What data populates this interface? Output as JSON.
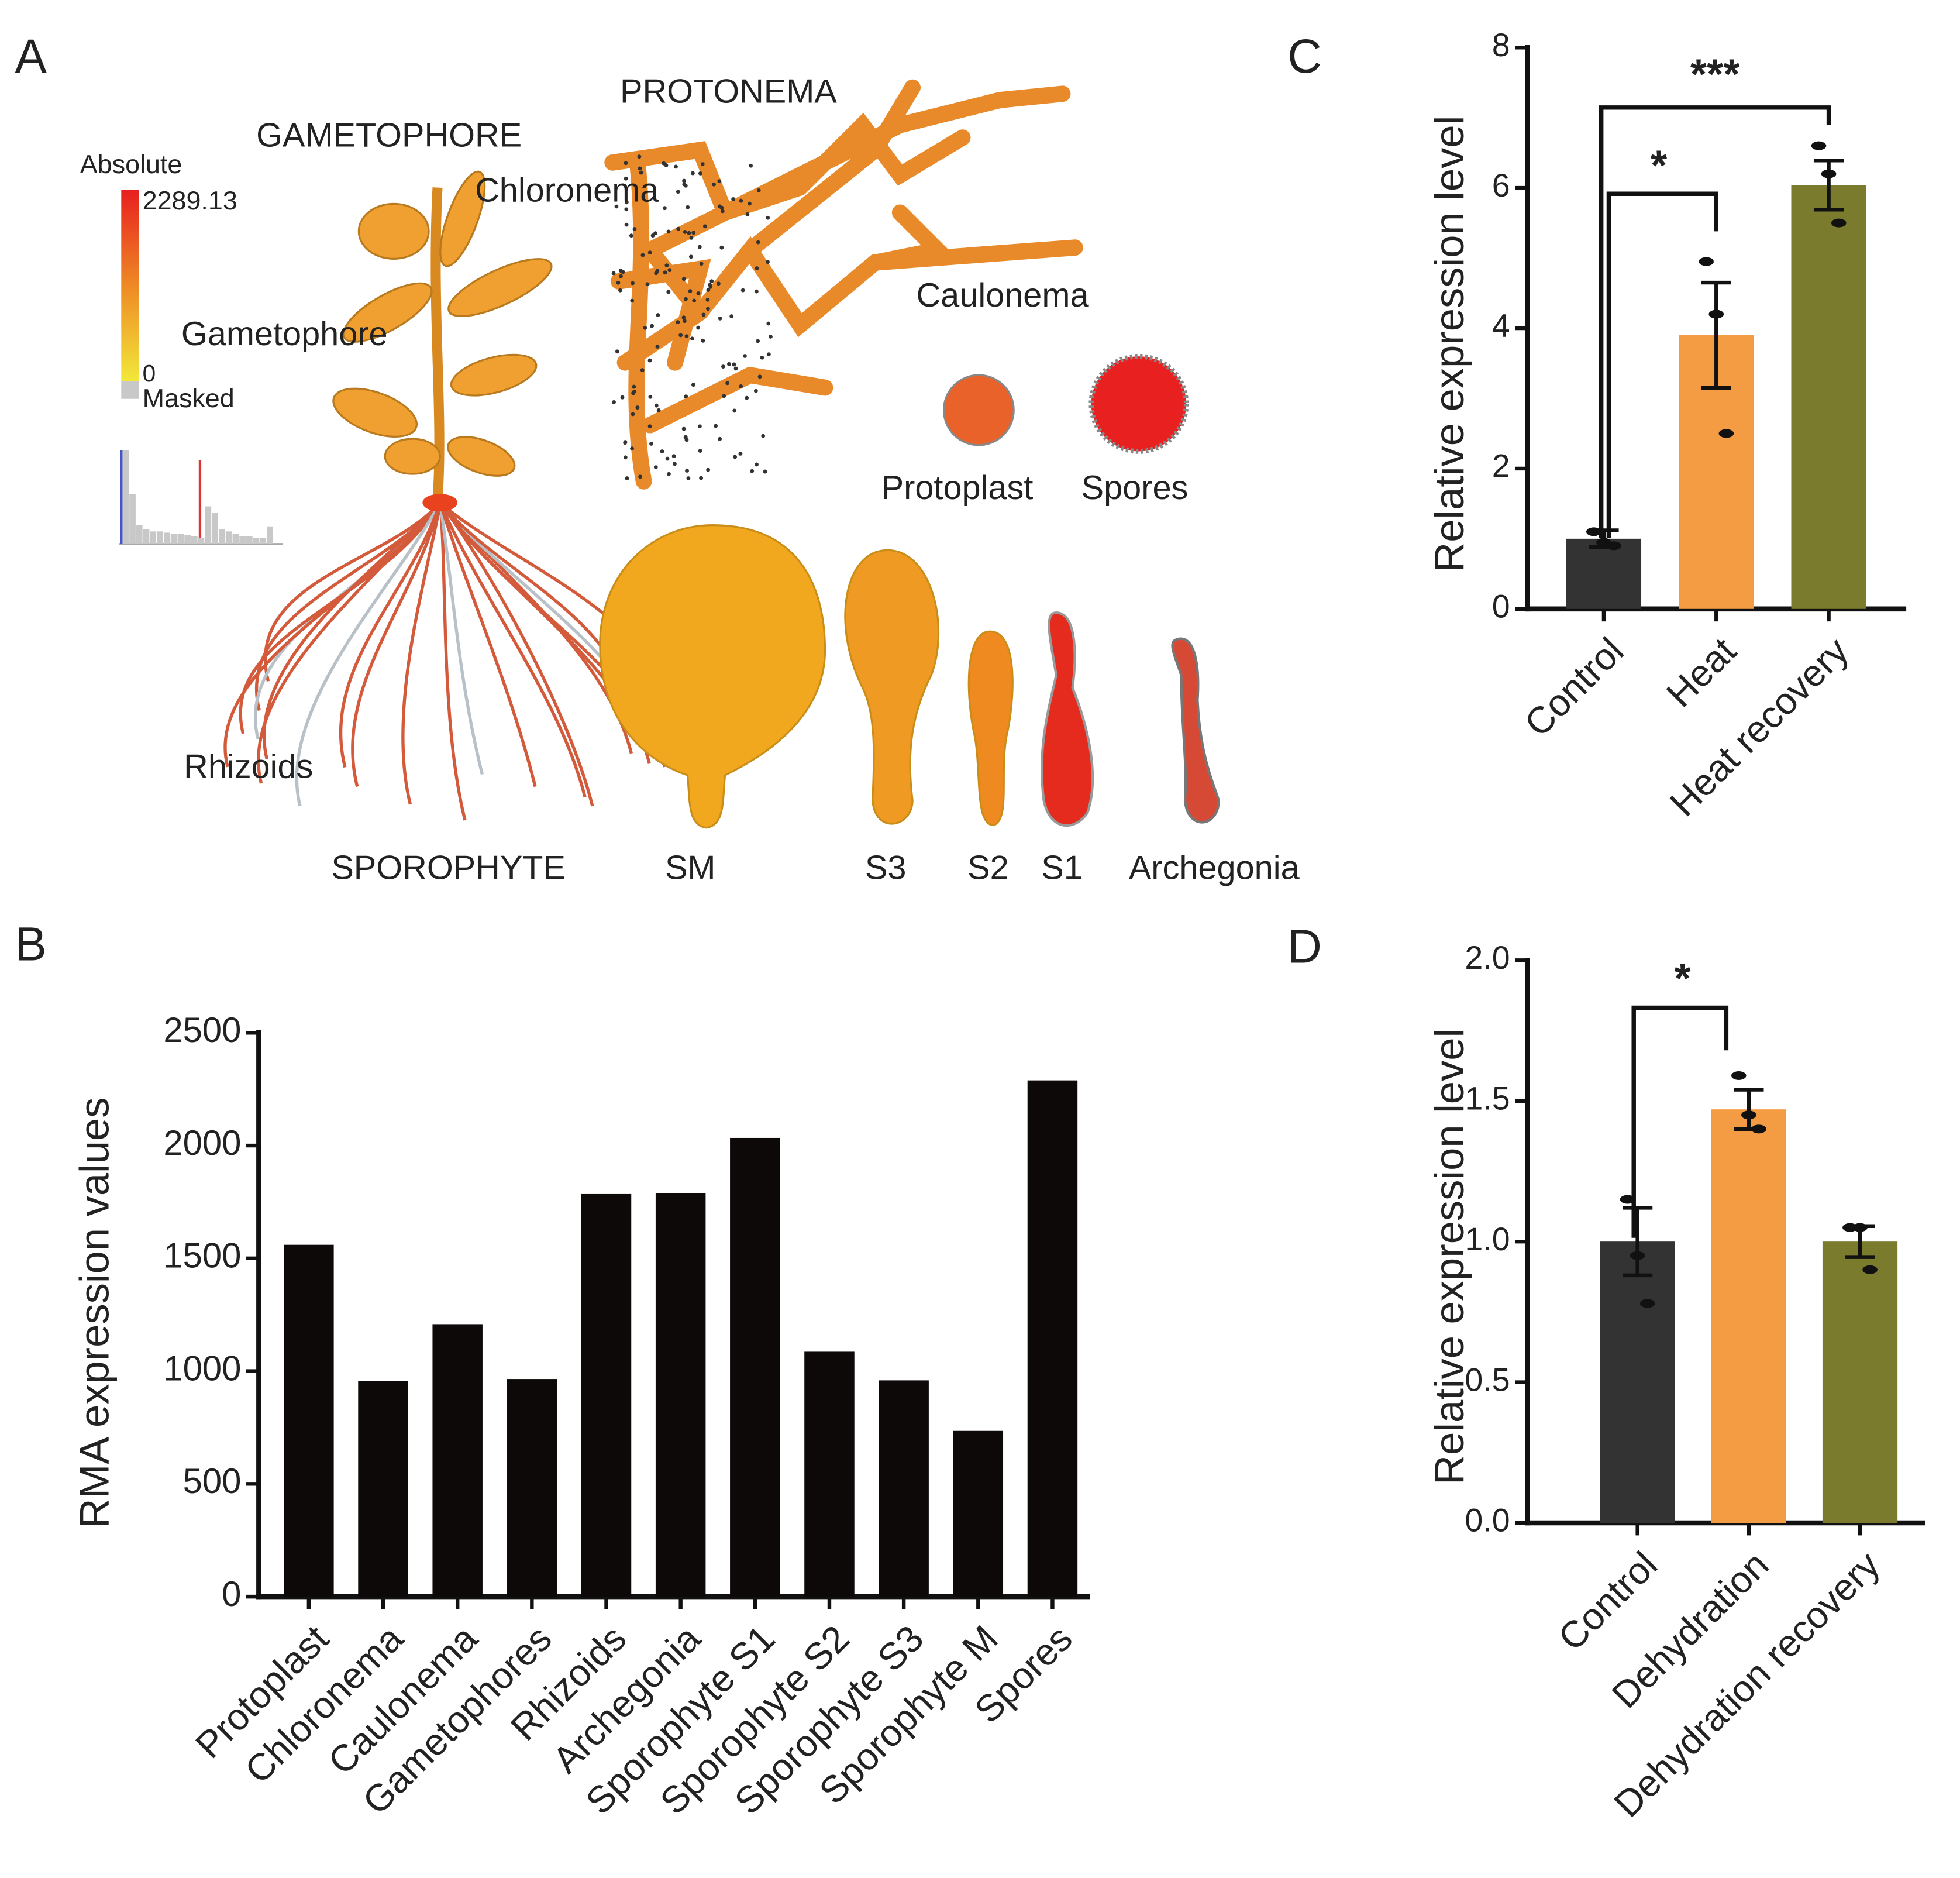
{
  "panel_a": {
    "letter": "A",
    "labels": {
      "legend_title": "Absolute",
      "legend_max": "2289.13",
      "legend_min": "0",
      "legend_masked": "Masked",
      "gametophore_head": "GAMETOPHORE",
      "protonema_head": "PROTONEMA",
      "chloronema": "Chloronema",
      "caulonema": "Caulonema",
      "gametophore": "Gametophore",
      "protoplast": "Protoplast",
      "spores": "Spores",
      "rhizoids": "Rhizoids",
      "sporophyte_head": "SPOROPHYTE",
      "sm": "SM",
      "s3": "S3",
      "s2": "S2",
      "s1": "S1",
      "archegonia": "Archegonia"
    }
  },
  "chart_data": [
    {
      "panel": "B",
      "type": "bar",
      "y_label": "RMA expression values",
      "categories": [
        "Protoplast",
        "Chloronema",
        "Caulonema",
        "Gametophores",
        "Rhizoids",
        "Archegonia",
        "Sporophyte S1",
        "Sporophyte S2",
        "Sporophyte S3",
        "Sporophyte M",
        "Spores"
      ],
      "values": [
        1560,
        955,
        1208,
        965,
        1785,
        1790,
        2034,
        1086,
        959,
        735,
        2289
      ],
      "color": "#0d0909",
      "ylim": [
        0,
        2500
      ],
      "yticks": [
        0,
        500,
        1000,
        1500,
        2000,
        2500
      ]
    },
    {
      "panel": "C",
      "type": "bar",
      "y_label": "Relative expression level",
      "categories": [
        "Control",
        "Heat",
        "Heat recovery"
      ],
      "values": [
        1.0,
        3.9,
        6.04
      ],
      "errors": [
        0.12,
        0.75,
        0.35
      ],
      "points": [
        [
          1.1,
          0.95,
          0.9
        ],
        [
          4.95,
          4.2,
          2.5
        ],
        [
          6.6,
          6.2,
          5.5
        ]
      ],
      "colors": [
        "#333333",
        "#f39c43",
        "#7b7b2d"
      ],
      "annotations": [
        "*",
        "***"
      ],
      "ylim": [
        0,
        8
      ],
      "yticks": [
        0,
        2,
        4,
        6,
        8
      ]
    },
    {
      "panel": "D",
      "type": "bar",
      "y_label": "Relative expression level",
      "categories": [
        "Control",
        "Dehydration",
        "Dehydration recovery"
      ],
      "values": [
        1.0,
        1.47,
        1.0
      ],
      "errors": [
        0.12,
        0.07,
        0.055
      ],
      "points": [
        [
          1.15,
          0.95,
          0.78
        ],
        [
          1.59,
          1.45,
          1.4
        ],
        [
          1.05,
          1.05,
          0.9
        ]
      ],
      "colors": [
        "#333333",
        "#f39c43",
        "#7b7b2d"
      ],
      "annotations": [
        "*"
      ],
      "ylim": [
        0,
        2
      ],
      "yticks": [
        {
          "value": 0,
          "label": "0.0"
        },
        0.5,
        {
          "value": 1,
          "label": "1.0"
        },
        1.5,
        {
          "value": 2,
          "label": "2.0"
        }
      ]
    }
  ]
}
